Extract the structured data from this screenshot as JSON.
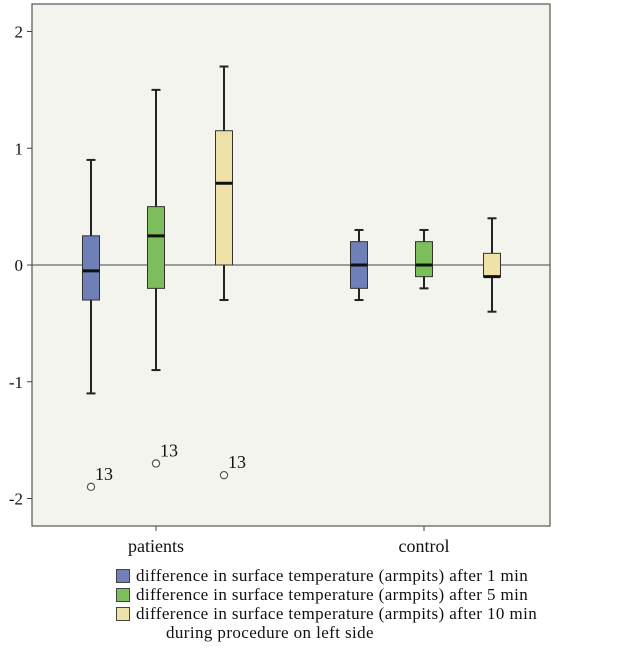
{
  "chart_data": {
    "type": "boxplot",
    "categories": [
      "patients",
      "control"
    ],
    "ylim": [
      -2.2,
      2.25
    ],
    "yticks": [
      -2,
      -1,
      0,
      1,
      2
    ],
    "reference_line": 0,
    "series": [
      {
        "name": "difference in surface temperature (armpits) after 1 min",
        "color": "#6f7fb8",
        "boxes": [
          {
            "category": "patients",
            "min": -1.1,
            "q1": -0.3,
            "median": -0.05,
            "q3": 0.25,
            "max": 0.9,
            "outliers": [
              {
                "value": -1.9,
                "label": "13"
              }
            ]
          },
          {
            "category": "control",
            "min": -0.3,
            "q1": -0.2,
            "median": 0.0,
            "q3": 0.2,
            "max": 0.3,
            "outliers": []
          }
        ]
      },
      {
        "name": "difference in surface temperature (armpits) after 5 min",
        "color": "#7cbd5c",
        "boxes": [
          {
            "category": "patients",
            "min": -0.9,
            "q1": -0.2,
            "median": 0.25,
            "q3": 0.5,
            "max": 1.5,
            "outliers": [
              {
                "value": -1.7,
                "label": "13"
              }
            ]
          },
          {
            "category": "control",
            "min": -0.2,
            "q1": -0.1,
            "median": 0.0,
            "q3": 0.2,
            "max": 0.3,
            "outliers": []
          }
        ]
      },
      {
        "name": "difference in surface temperature (armpits) after 10 min",
        "color": "#efe2a8",
        "boxes": [
          {
            "category": "patients",
            "min": -0.3,
            "q1": 0.0,
            "median": 0.7,
            "q3": 1.15,
            "max": 1.7,
            "outliers": [
              {
                "value": -1.8,
                "label": "13"
              }
            ]
          },
          {
            "category": "control",
            "min": -0.4,
            "q1": -0.1,
            "median": -0.1,
            "q3": 0.1,
            "max": 0.4,
            "outliers": []
          }
        ]
      }
    ],
    "legend_note": "during procedure on left side",
    "grid": false,
    "legend_position": "bottom"
  }
}
